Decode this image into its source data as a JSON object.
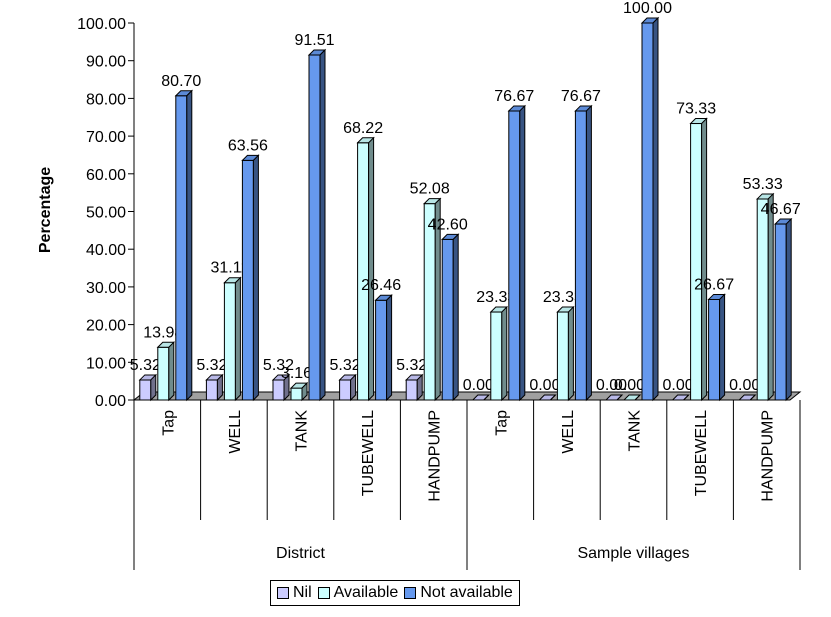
{
  "chart_data": {
    "type": "bar",
    "ylabel": "Percentage",
    "ylim": [
      0,
      100
    ],
    "yticks": [
      "0.00",
      "10.00",
      "20.00",
      "30.00",
      "40.00",
      "50.00",
      "60.00",
      "70.00",
      "80.00",
      "90.00",
      "100.00"
    ],
    "groups": [
      "District",
      "Sample villages"
    ],
    "categories": [
      "Tap",
      "WELL",
      "TANK",
      "TUBEWELL",
      "HANDPUMP",
      "Tap",
      "WELL",
      "TANK",
      "TUBEWELL",
      "HANDPUMP"
    ],
    "series": [
      {
        "name": "Nil",
        "color": "#ccccff",
        "values": [
          5.32,
          5.32,
          5.32,
          5.32,
          5.32,
          0.0,
          0.0,
          0.0,
          0.0,
          0.0
        ]
      },
      {
        "name": "Available",
        "color": "#ccffff",
        "values": [
          13.98,
          31.11,
          3.16,
          68.22,
          52.08,
          23.33,
          23.33,
          0.0,
          73.33,
          53.33
        ]
      },
      {
        "name": "Not available",
        "color": "#6699ee",
        "values": [
          80.7,
          63.56,
          91.51,
          26.46,
          42.6,
          76.67,
          76.67,
          100.0,
          26.67,
          46.67
        ]
      }
    ],
    "data_labels": [
      [
        "5.32",
        "5.32",
        "5.32",
        "5.32",
        "5.32",
        "0.00",
        "0.00",
        "0.00",
        "0.00",
        "0.00"
      ],
      [
        "13.98",
        "31.11",
        "3.16",
        "68.22",
        "52.08",
        "23.33",
        "23.33",
        "0.00",
        "73.33",
        "53.33"
      ],
      [
        "80.70",
        "63.56",
        "91.51",
        "26.46",
        "42.60",
        "76.67",
        "76.67",
        "100.00",
        "26.67",
        "46.67"
      ]
    ],
    "legend_position": "bottom",
    "grid": false
  }
}
